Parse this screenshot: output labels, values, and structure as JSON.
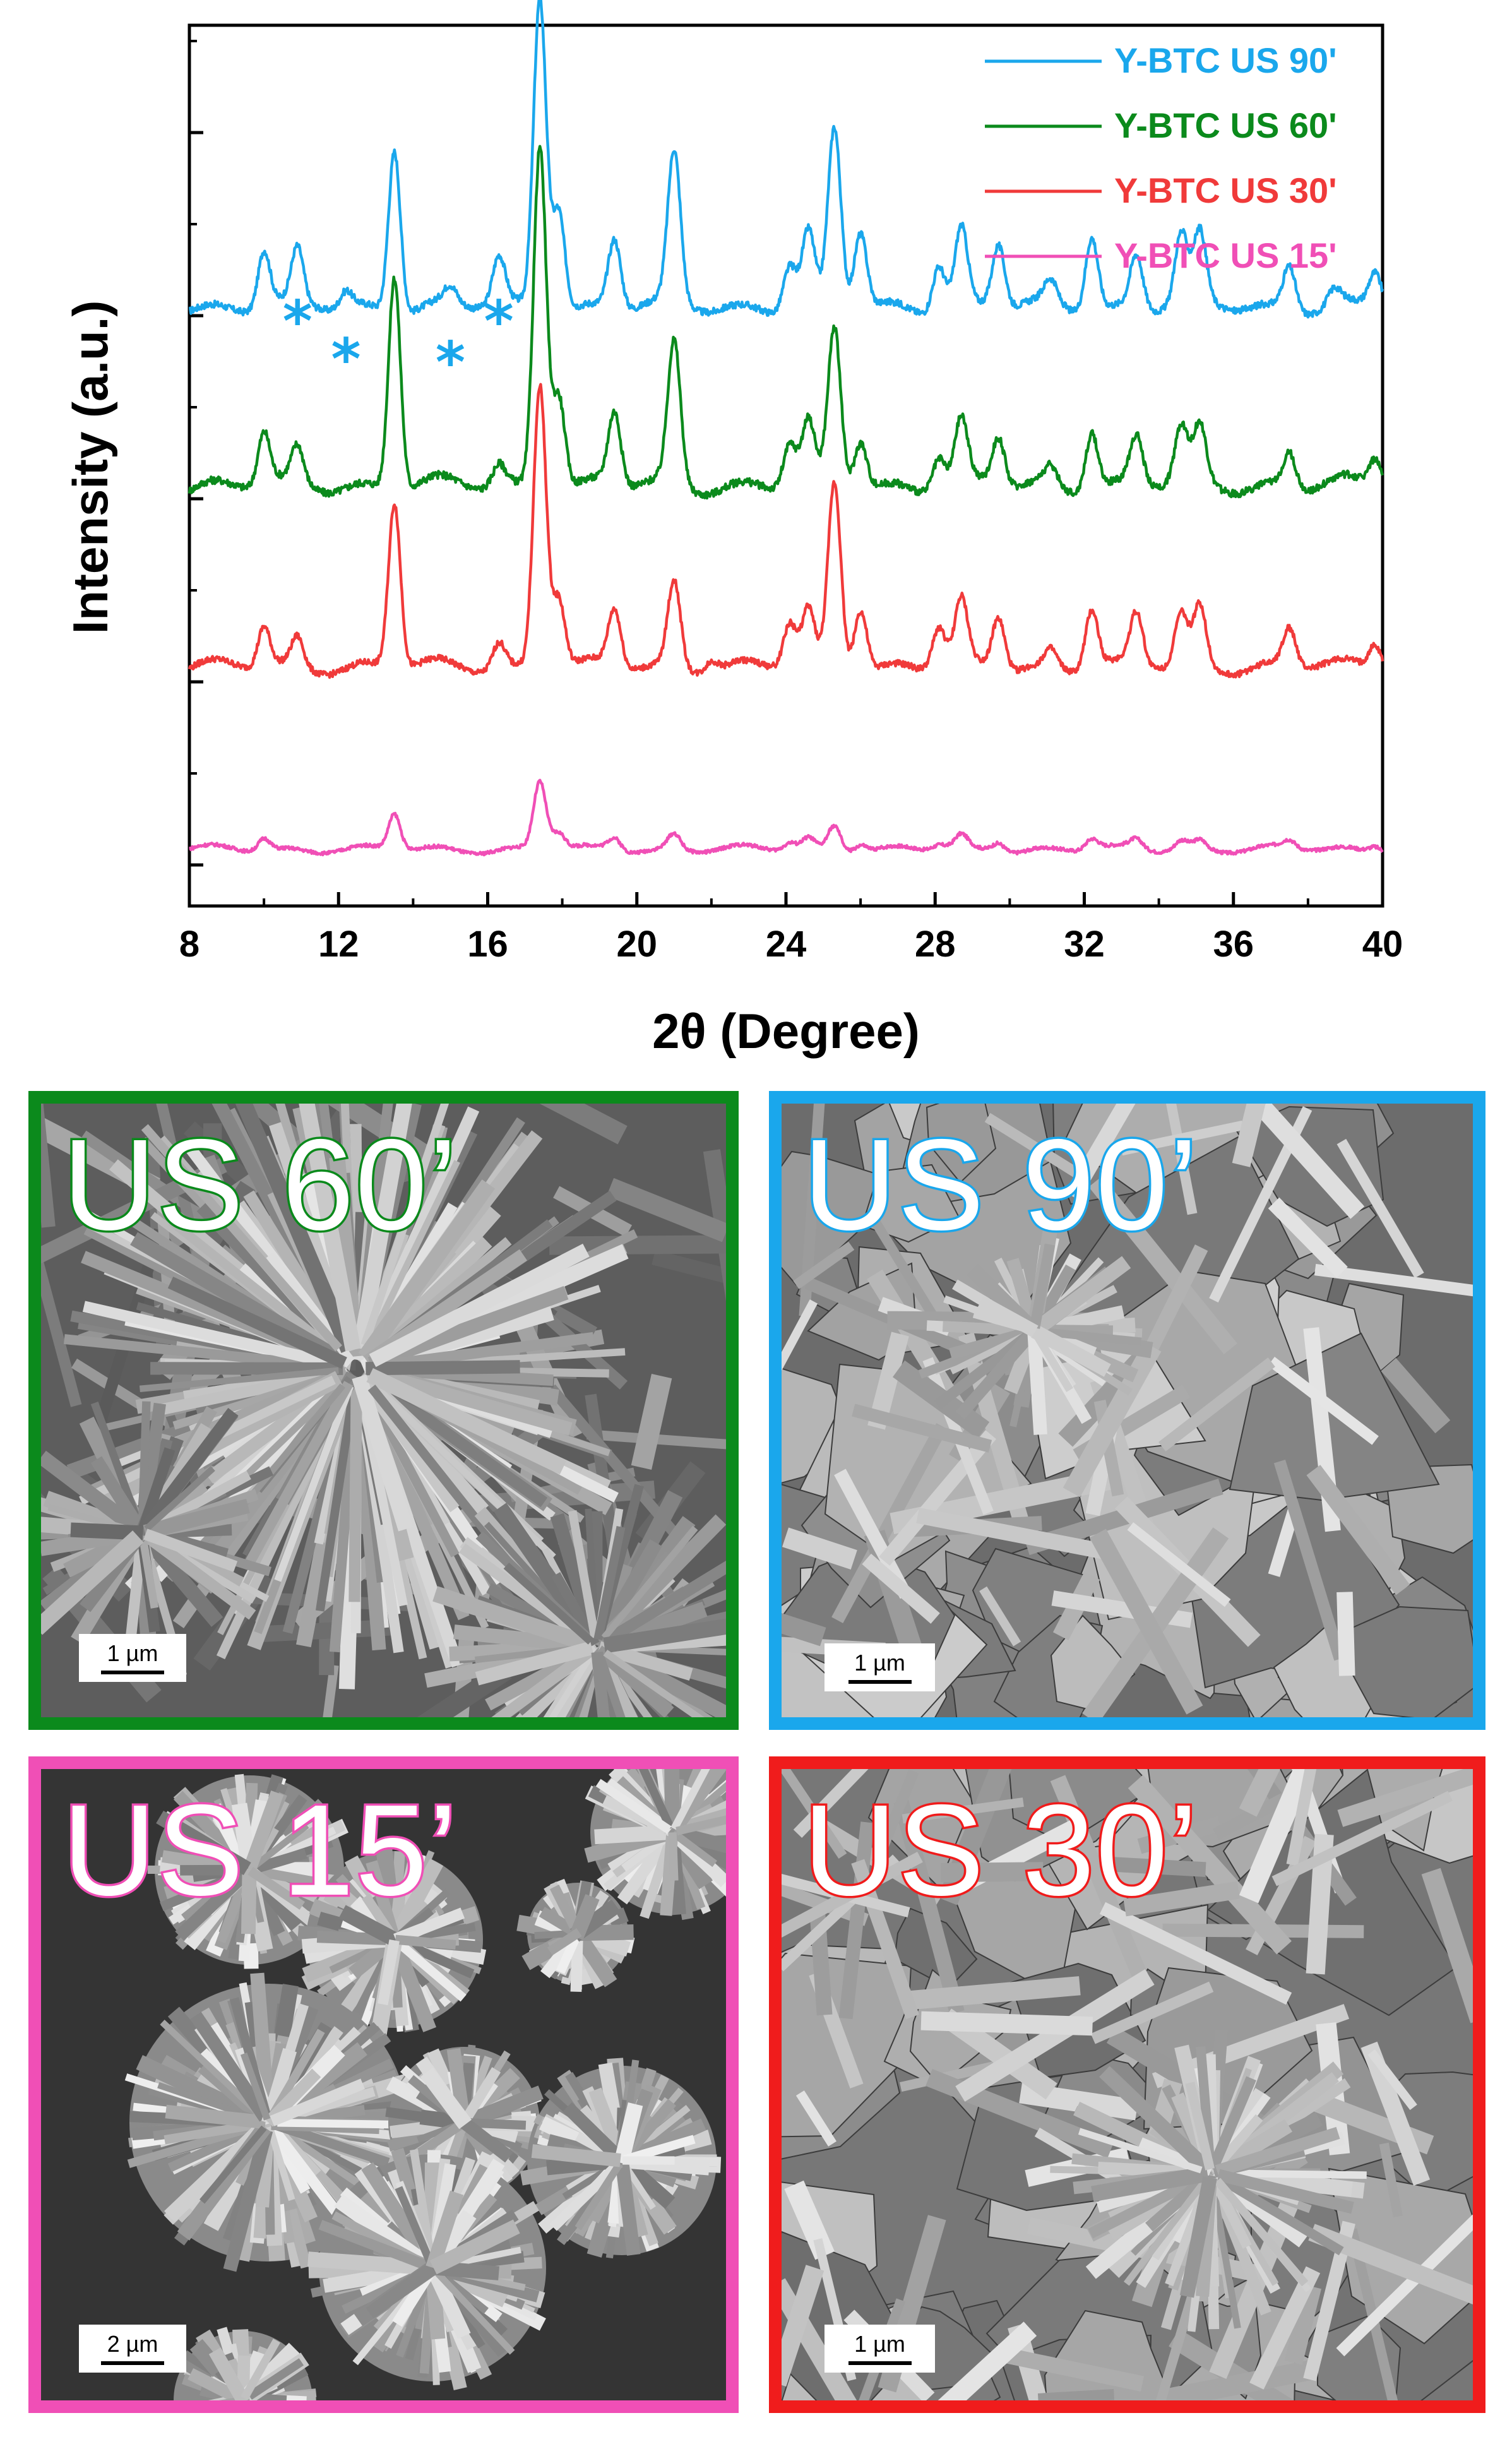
{
  "chart_data": {
    "type": "line",
    "xlabel": "2θ (Degree)",
    "ylabel": "Intensity (a.u.)",
    "xlim": [
      8,
      40
    ],
    "xticks": [
      "8",
      "12",
      "16",
      "20",
      "24",
      "28",
      "32",
      "36",
      "40"
    ],
    "legend_position": "top-right",
    "grid": false,
    "series": [
      {
        "name": "Y-BTC US 90'",
        "color": "#1aa7ec",
        "baseline_offset": 3,
        "peaks": [
          [
            10.0,
            0.18
          ],
          [
            10.9,
            0.17
          ],
          [
            12.2,
            0.05
          ],
          [
            13.5,
            0.52
          ],
          [
            15.0,
            0.05
          ],
          [
            16.3,
            0.15
          ],
          [
            17.4,
            1.0
          ],
          [
            17.9,
            0.33
          ],
          [
            19.4,
            0.22
          ],
          [
            21.0,
            0.48
          ],
          [
            24.1,
            0.14
          ],
          [
            24.6,
            0.23
          ],
          [
            25.3,
            0.56
          ],
          [
            26.0,
            0.24
          ],
          [
            28.1,
            0.15
          ],
          [
            28.7,
            0.25
          ],
          [
            29.7,
            0.2
          ],
          [
            31.1,
            0.07
          ],
          [
            32.2,
            0.24
          ],
          [
            33.4,
            0.17
          ],
          [
            34.6,
            0.22
          ],
          [
            35.1,
            0.22
          ],
          [
            37.5,
            0.14
          ],
          [
            38.7,
            0.05
          ],
          [
            39.8,
            0.11
          ]
        ],
        "annotations": [
          {
            "text": "*",
            "x": 10.9
          },
          {
            "text": "*",
            "x": 12.2
          },
          {
            "text": "*",
            "x": 15.0
          },
          {
            "text": "*",
            "x": 16.3
          }
        ]
      },
      {
        "name": "Y-BTC US 60'",
        "color": "#0b8a1c",
        "baseline_offset": 2,
        "peaks": [
          [
            10.0,
            0.15
          ],
          [
            10.9,
            0.1
          ],
          [
            13.5,
            0.62
          ],
          [
            16.3,
            0.06
          ],
          [
            17.4,
            1.0
          ],
          [
            17.9,
            0.28
          ],
          [
            19.4,
            0.21
          ],
          [
            21.0,
            0.41
          ],
          [
            24.1,
            0.12
          ],
          [
            24.6,
            0.17
          ],
          [
            25.3,
            0.45
          ],
          [
            26.0,
            0.14
          ],
          [
            28.1,
            0.09
          ],
          [
            28.7,
            0.18
          ],
          [
            29.7,
            0.14
          ],
          [
            31.1,
            0.05
          ],
          [
            32.2,
            0.17
          ],
          [
            33.4,
            0.14
          ],
          [
            34.6,
            0.16
          ],
          [
            35.1,
            0.16
          ],
          [
            37.5,
            0.1
          ],
          [
            39.8,
            0.08
          ]
        ]
      },
      {
        "name": "Y-BTC US 30'",
        "color": "#f03a3a",
        "baseline_offset": 1,
        "peaks": [
          [
            10.0,
            0.14
          ],
          [
            10.9,
            0.1
          ],
          [
            13.5,
            0.58
          ],
          [
            16.3,
            0.09
          ],
          [
            17.4,
            1.0
          ],
          [
            17.9,
            0.25
          ],
          [
            19.4,
            0.2
          ],
          [
            21.0,
            0.3
          ],
          [
            22.0,
            0.04
          ],
          [
            24.1,
            0.15
          ],
          [
            24.6,
            0.19
          ],
          [
            25.3,
            0.65
          ],
          [
            26.0,
            0.22
          ],
          [
            28.1,
            0.14
          ],
          [
            28.7,
            0.22
          ],
          [
            29.7,
            0.18
          ],
          [
            31.1,
            0.06
          ],
          [
            32.2,
            0.21
          ],
          [
            33.4,
            0.18
          ],
          [
            34.6,
            0.18
          ],
          [
            35.1,
            0.21
          ],
          [
            37.5,
            0.13
          ],
          [
            39.8,
            0.09
          ]
        ]
      },
      {
        "name": "Y-BTC US 15'",
        "color": "#f04fb6",
        "baseline_offset": 0,
        "peaks": [
          [
            10.0,
            0.08
          ],
          [
            13.5,
            0.23
          ],
          [
            17.4,
            0.44
          ],
          [
            17.9,
            0.11
          ],
          [
            19.4,
            0.08
          ],
          [
            21.0,
            0.1
          ],
          [
            24.1,
            0.05
          ],
          [
            24.6,
            0.07
          ],
          [
            25.3,
            0.16
          ],
          [
            26.0,
            0.05
          ],
          [
            28.1,
            0.03
          ],
          [
            28.7,
            0.08
          ],
          [
            29.7,
            0.06
          ],
          [
            32.2,
            0.07
          ],
          [
            33.4,
            0.06
          ],
          [
            34.6,
            0.06
          ],
          [
            35.1,
            0.06
          ],
          [
            37.5,
            0.05
          ],
          [
            39.8,
            0.04
          ]
        ]
      }
    ]
  },
  "panels": [
    {
      "label": "US 60’",
      "scale": "1 µm",
      "border_color": "#0b8a1c",
      "texture": "rosette-rods"
    },
    {
      "label": "US 90’",
      "scale": "1 µm",
      "border_color": "#1aa7ec",
      "texture": "flakes-rods"
    },
    {
      "label": "US 15’",
      "scale": "2 µm",
      "border_color": "#f04fb6",
      "texture": "spheres-dark"
    },
    {
      "label": "US 30’",
      "scale": "1 µm",
      "border_color": "#f01c1c",
      "texture": "rods-flakes"
    }
  ]
}
